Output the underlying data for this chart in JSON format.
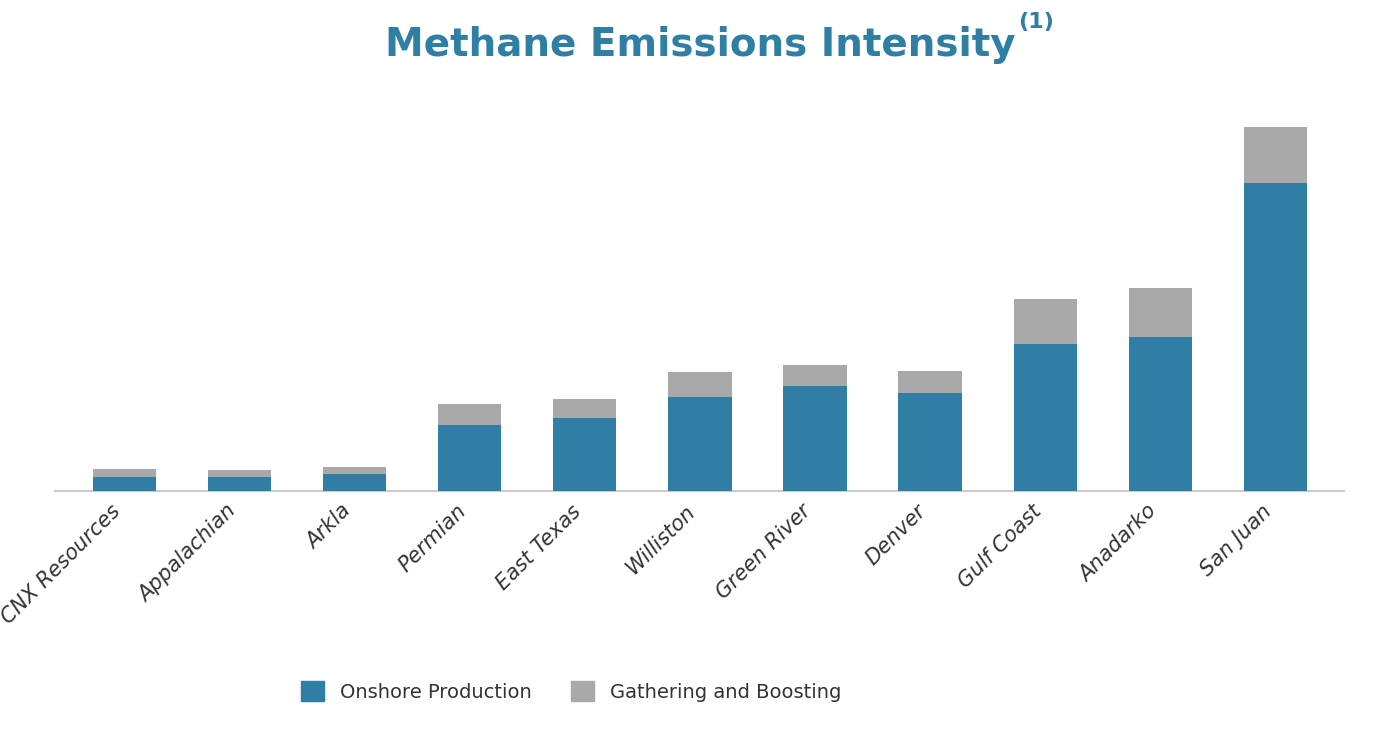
{
  "categories": [
    "CNX Resources",
    "Appalachian",
    "Arkla",
    "Permian",
    "East Texas",
    "Williston",
    "Green River",
    "Denver",
    "Gulf Coast",
    "Anadarko",
    "San Juan"
  ],
  "onshore_production": [
    0.04,
    0.042,
    0.05,
    0.19,
    0.21,
    0.27,
    0.3,
    0.28,
    0.42,
    0.44,
    0.88
  ],
  "gathering_boosting": [
    0.025,
    0.018,
    0.02,
    0.06,
    0.055,
    0.07,
    0.06,
    0.065,
    0.13,
    0.14,
    0.16
  ],
  "title": "Methane Emissions Intensity",
  "title_superscript": "(1)",
  "legend_labels": [
    "Onshore Production",
    "Gathering and Boosting"
  ],
  "onshore_color": "#2e7fa3",
  "boosting_color": "#a9a9a9",
  "title_color": "#2e7fa3",
  "background_color": "#ffffff",
  "title_fontsize": 28,
  "superscript_fontsize": 16,
  "label_fontsize": 15,
  "legend_fontsize": 14,
  "bar_width": 0.55
}
